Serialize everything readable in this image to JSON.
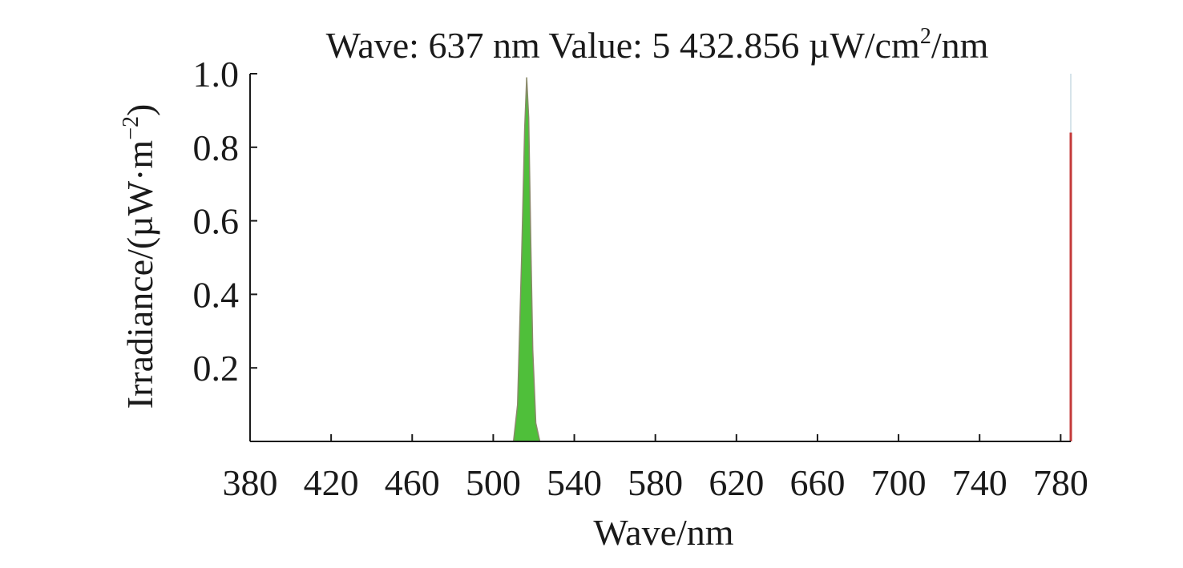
{
  "chart_data": {
    "type": "area",
    "title": {
      "prefix": "Wave: 637 nm Value: 5 432.856 µW/cm",
      "sup": "2",
      "suffix": "/nm"
    },
    "xlabel": "Wave/nm",
    "ylabel": {
      "base": "Irradiance/(µW·m",
      "sup": "−2",
      "close": ")"
    },
    "xlim": [
      380,
      785
    ],
    "ylim": [
      0,
      1.0
    ],
    "x_ticks": [
      380,
      420,
      460,
      500,
      540,
      580,
      620,
      660,
      700,
      740,
      780
    ],
    "x_tick_labels": [
      "380",
      "420",
      "460",
      "500",
      "540",
      "580",
      "620",
      "660",
      "700",
      "740",
      "780"
    ],
    "y_ticks": [
      0.2,
      0.4,
      0.6,
      0.8,
      1.0
    ],
    "y_tick_labels": [
      "0.2",
      "0.4",
      "0.6",
      "0.8",
      "1.0"
    ],
    "grid": false,
    "legend": "none",
    "series": [
      {
        "color": "#4fbf3a",
        "edge_color": "#8a8a6a",
        "x": [
          510,
          512,
          514,
          515.5,
          516.5,
          517.5,
          518.5,
          519.5,
          521,
          523
        ],
        "values": [
          0.0,
          0.1,
          0.5,
          0.85,
          0.99,
          0.88,
          0.55,
          0.25,
          0.05,
          0.0
        ]
      },
      {
        "color": "#c43a3a",
        "x": [
          785,
          785
        ],
        "values": [
          0.0,
          0.84
        ]
      }
    ],
    "reference_lines": [
      {
        "x": 785,
        "y_top": 1.0,
        "color": "#d6e4ea"
      }
    ]
  }
}
